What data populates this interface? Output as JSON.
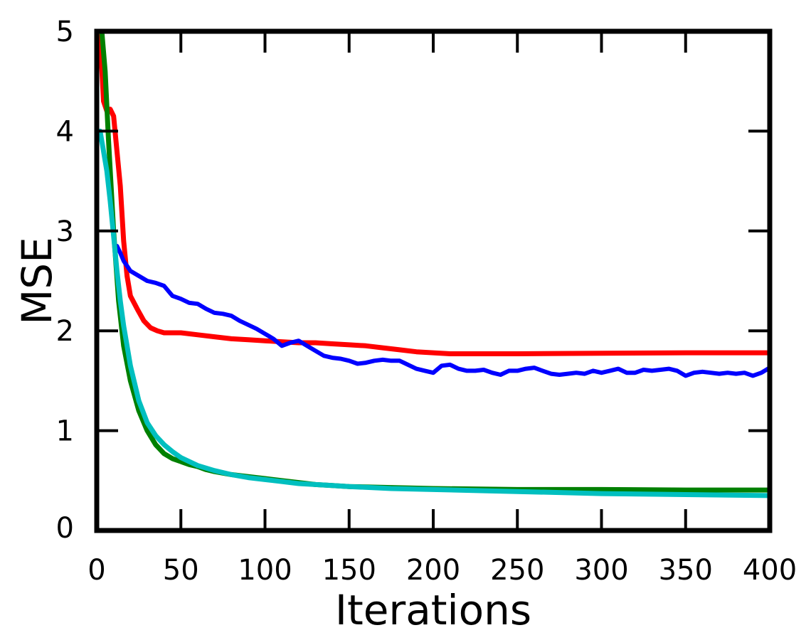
{
  "chart_data": {
    "type": "line",
    "xlabel": "Iterations",
    "ylabel": "MSE",
    "xlim": [
      0,
      400
    ],
    "ylim": [
      0,
      5
    ],
    "xticks": [
      0,
      50,
      100,
      150,
      200,
      250,
      300,
      350,
      400
    ],
    "yticks": [
      0,
      1,
      2,
      3,
      4,
      5
    ],
    "grid": false,
    "series": [
      {
        "color": "#ff0000",
        "x": [
          2,
          4,
          6,
          8,
          10,
          12,
          14,
          16,
          18,
          20,
          24,
          28,
          32,
          36,
          40,
          45,
          50,
          60,
          70,
          80,
          90,
          100,
          110,
          120,
          130,
          140,
          150,
          160,
          170,
          180,
          190,
          200,
          210,
          220,
          250,
          300,
          350,
          400
        ],
        "y": [
          4.95,
          4.3,
          4.2,
          4.22,
          4.15,
          3.8,
          3.45,
          2.9,
          2.55,
          2.35,
          2.22,
          2.1,
          2.03,
          2.0,
          1.98,
          1.98,
          1.98,
          1.96,
          1.94,
          1.92,
          1.91,
          1.9,
          1.89,
          1.88,
          1.88,
          1.87,
          1.86,
          1.85,
          1.83,
          1.81,
          1.79,
          1.78,
          1.77,
          1.77,
          1.77,
          1.775,
          1.78,
          1.78
        ]
      },
      {
        "color": "#0000ff",
        "x": [
          12,
          14,
          16,
          18,
          20,
          25,
          30,
          35,
          40,
          45,
          50,
          55,
          60,
          65,
          70,
          75,
          80,
          85,
          90,
          95,
          100,
          105,
          110,
          115,
          120,
          125,
          130,
          135,
          140,
          145,
          150,
          155,
          160,
          165,
          170,
          175,
          180,
          185,
          190,
          195,
          200,
          205,
          210,
          215,
          220,
          225,
          230,
          235,
          240,
          245,
          250,
          255,
          260,
          265,
          270,
          275,
          280,
          285,
          290,
          295,
          300,
          305,
          310,
          315,
          320,
          325,
          330,
          335,
          340,
          345,
          350,
          355,
          360,
          365,
          370,
          375,
          380,
          385,
          390,
          395,
          400
        ],
        "y": [
          2.85,
          2.78,
          2.7,
          2.65,
          2.6,
          2.55,
          2.5,
          2.48,
          2.45,
          2.35,
          2.32,
          2.28,
          2.27,
          2.22,
          2.18,
          2.17,
          2.15,
          2.1,
          2.06,
          2.02,
          1.97,
          1.92,
          1.85,
          1.88,
          1.9,
          1.85,
          1.8,
          1.75,
          1.73,
          1.72,
          1.7,
          1.67,
          1.68,
          1.7,
          1.71,
          1.7,
          1.7,
          1.66,
          1.62,
          1.6,
          1.58,
          1.65,
          1.66,
          1.62,
          1.6,
          1.6,
          1.61,
          1.58,
          1.56,
          1.6,
          1.6,
          1.62,
          1.63,
          1.6,
          1.57,
          1.56,
          1.57,
          1.58,
          1.57,
          1.6,
          1.58,
          1.6,
          1.62,
          1.58,
          1.58,
          1.61,
          1.6,
          1.61,
          1.62,
          1.6,
          1.55,
          1.58,
          1.59,
          1.58,
          1.57,
          1.58,
          1.57,
          1.58,
          1.55,
          1.58,
          1.63
        ]
      },
      {
        "color": "#008000",
        "x": [
          3,
          5,
          7,
          10,
          13,
          16,
          20,
          25,
          30,
          35,
          40,
          45,
          50,
          55,
          60,
          65,
          70,
          80,
          90,
          100,
          110,
          120,
          130,
          140,
          150,
          175,
          200,
          250,
          300,
          350,
          400
        ],
        "y": [
          5.0,
          4.6,
          3.9,
          3.0,
          2.3,
          1.85,
          1.5,
          1.2,
          1.0,
          0.86,
          0.77,
          0.72,
          0.69,
          0.66,
          0.64,
          0.61,
          0.59,
          0.56,
          0.54,
          0.52,
          0.5,
          0.48,
          0.46,
          0.45,
          0.44,
          0.43,
          0.42,
          0.41,
          0.41,
          0.405,
          0.405
        ]
      },
      {
        "color": "#00bfbf",
        "x": [
          2,
          4,
          6,
          8,
          10,
          12,
          14,
          16,
          18,
          20,
          25,
          30,
          35,
          40,
          45,
          50,
          60,
          70,
          80,
          90,
          100,
          110,
          120,
          130,
          140,
          150,
          175,
          200,
          250,
          300,
          350,
          400
        ],
        "y": [
          4.0,
          3.8,
          3.6,
          3.3,
          2.95,
          2.6,
          2.3,
          2.05,
          1.85,
          1.65,
          1.3,
          1.08,
          0.95,
          0.86,
          0.79,
          0.73,
          0.65,
          0.6,
          0.56,
          0.53,
          0.51,
          0.49,
          0.47,
          0.46,
          0.45,
          0.44,
          0.42,
          0.41,
          0.39,
          0.37,
          0.36,
          0.35
        ]
      }
    ]
  }
}
